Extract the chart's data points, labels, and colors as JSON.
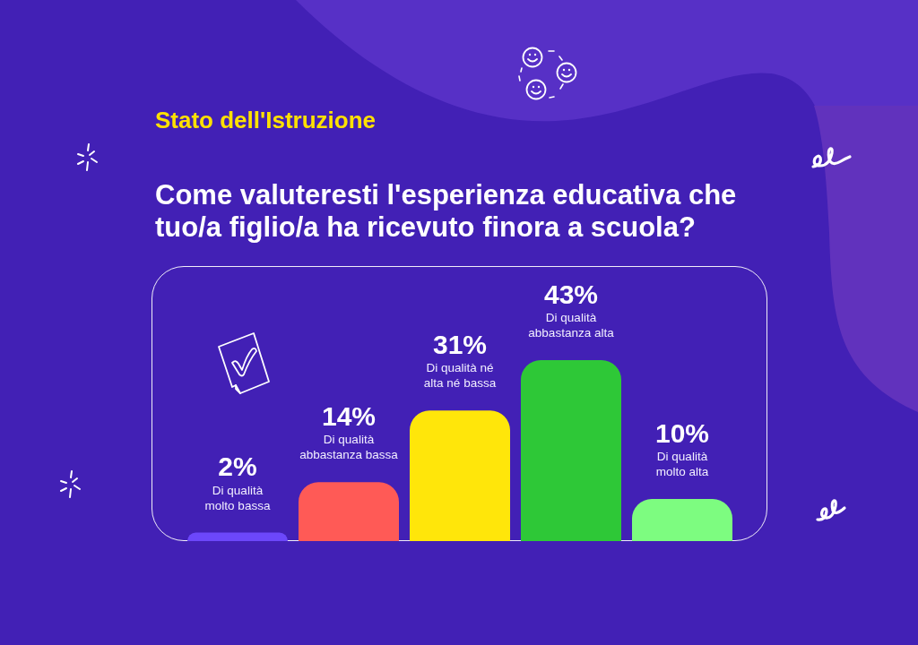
{
  "chart_data": {
    "type": "bar",
    "subtitle": "Stato dell'Istruzione",
    "title": "Come valuteresti l'esperienza educativa che tuo/a figlio/a ha ricevuto finora a scuola?",
    "categories": [
      "Di qualità molto bassa",
      "Di qualità abbastanza bassa",
      "Di qualità né alta né bassa",
      "Di qualità abbastanza alta",
      "Di qualità molto alta"
    ],
    "values": [
      2,
      14,
      31,
      43,
      10
    ],
    "colors": [
      "#6c47fb",
      "#ff5a56",
      "#ffe60a",
      "#2ec837",
      "#7dfc80"
    ],
    "value_labels": [
      "2%",
      "14%",
      "31%",
      "43%",
      "10%"
    ],
    "tick_labels": false
  }
}
